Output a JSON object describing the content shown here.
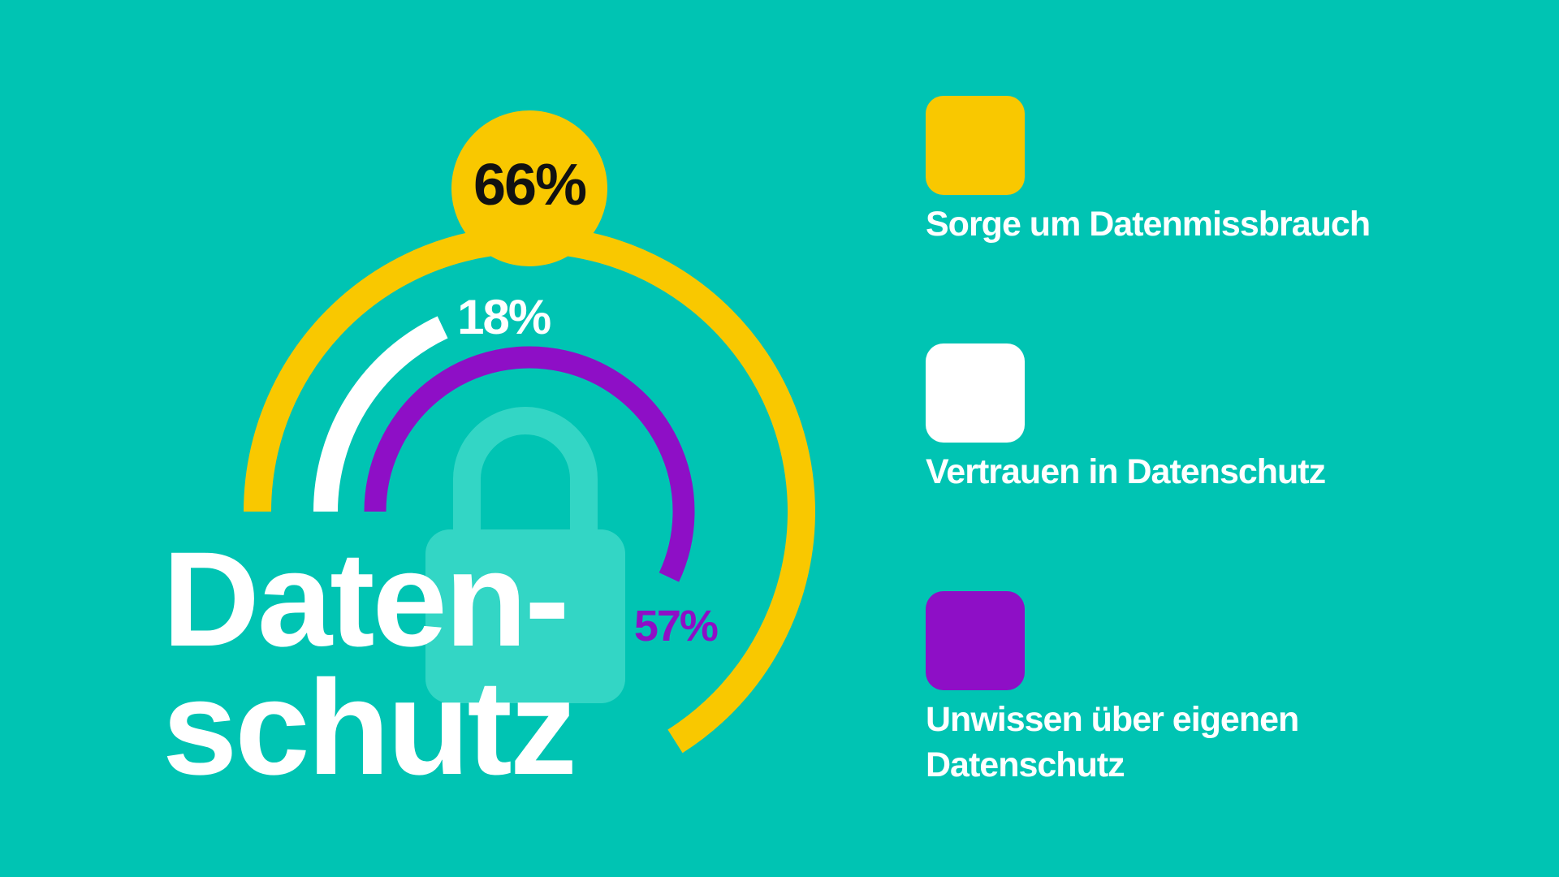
{
  "chart_data": {
    "type": "radial-bar",
    "title": "Daten-schutz",
    "title_lines": [
      "Daten-",
      "schutz"
    ],
    "series": [
      {
        "name": "Sorge um Datenmissbrauch",
        "value": 66,
        "label": "66%",
        "color": "#f9c800",
        "label_color": "#111111"
      },
      {
        "name": "Vertrauen in Datenschutz",
        "value": 18,
        "label": "18%",
        "color": "#ffffff",
        "label_color": "#ffffff"
      },
      {
        "name": "Unwissen über eigenen Datenschutz",
        "value": 57,
        "label": "57%",
        "color": "#8e0fc6",
        "label_color": "#8e0fc6"
      }
    ],
    "unit": "%",
    "value_range": [
      0,
      100
    ],
    "legend_position": "right",
    "background_color": "#00c4b3",
    "decoration": "padlock-icon"
  },
  "legend": {
    "items": [
      {
        "label": "Sorge um Datenmissbrauch",
        "color": "#f9c800"
      },
      {
        "label": "Vertrauen in Datenschutz",
        "color": "#ffffff"
      },
      {
        "label": "Unwissen über eigenen Datenschutz",
        "color": "#8e0fc6"
      }
    ]
  }
}
